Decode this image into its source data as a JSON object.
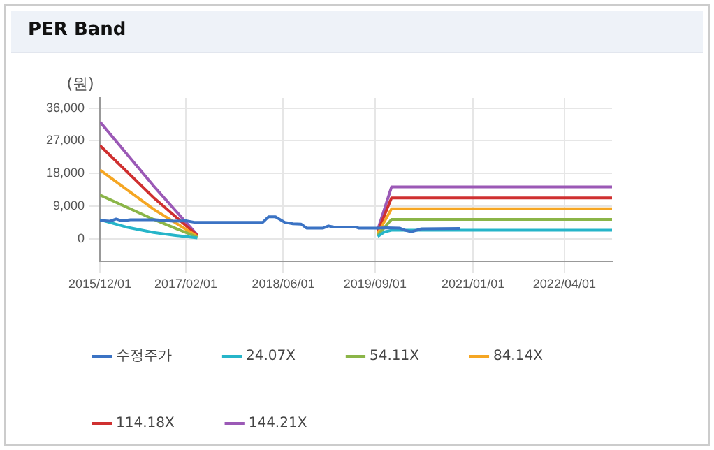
{
  "chart_data": {
    "type": "line",
    "title": "PER Band",
    "ylabel": "(원)",
    "xlim": [
      "2015-12-01",
      "2022-11-24"
    ],
    "xticks": [
      {
        "value": "2015-12-01",
        "label": "2015/12/01"
      },
      {
        "value": "2017-02-01",
        "label": "2017/02/01"
      },
      {
        "value": "2018-06-01",
        "label": "2018/06/01"
      },
      {
        "value": "2019-09-01",
        "label": "2019/09/01"
      },
      {
        "value": "2021-01-01",
        "label": "2021/01/01"
      },
      {
        "value": "2022-04-01",
        "label": "2022/04/01"
      }
    ],
    "ylim": [
      -6200,
      38800
    ],
    "yticks": [
      0,
      {
        "value": 9000,
        "label": "9,000"
      },
      {
        "value": 18000,
        "label": "18,000"
      },
      {
        "value": 27000,
        "label": "27,000"
      },
      {
        "value": 36000,
        "label": "36,000"
      }
    ],
    "grid": true,
    "legend": "bottom",
    "marker": "none",
    "line_style": "solid",
    "series": [
      {
        "name": "수정주가",
        "color": "#3b73c4",
        "x": [
          "2015-12-01",
          "2016-01-19",
          "2016-02-20",
          "2016-03-20",
          "2016-05-01",
          "2016-09-01",
          "2016-12-01",
          "2017-02-01",
          "2017-03-15",
          "2017-11-01",
          "2018-02-19",
          "2018-03-19",
          "2018-04-23",
          "2018-06-08",
          "2018-07-19",
          "2018-08-29",
          "2018-09-25",
          "2018-12-16",
          "2019-01-12",
          "2019-02-09",
          "2019-05-28",
          "2019-06-11",
          "2019-09-14",
          "2019-10-25",
          "2020-01-01",
          "2020-01-28",
          "2020-03-01",
          "2020-04-19",
          "2020-10-27"
        ],
        "values": [
          5100,
          4900,
          5500,
          5000,
          5300,
          5300,
          4900,
          5000,
          4600,
          4600,
          4600,
          6100,
          6100,
          4600,
          4200,
          4100,
          3000,
          3000,
          3600,
          3300,
          3300,
          3000,
          3000,
          3100,
          3000,
          2400,
          2000,
          2800,
          2900
        ]
      },
      {
        "name": "24.07X",
        "color": "#26b5c9",
        "x": [
          "2015-12-01",
          "2016-04-10",
          "2016-08-24",
          "2016-12-11",
          "2017-03-30",
          "2017-06-01",
          "2019-09-14",
          "2019-10-20",
          "2019-11-22",
          "2022-11-24"
        ],
        "values": [
          5300,
          3300,
          1800,
          1000,
          300,
          null,
          700,
          2000,
          2400,
          2400
        ]
      },
      {
        "name": "54.11X",
        "color": "#8bb548",
        "x": [
          "2015-12-01",
          "2016-08-24",
          "2017-03-30",
          "2017-06-01",
          "2019-09-14",
          "2019-11-22",
          "2022-11-24"
        ],
        "values": [
          12100,
          5400,
          500,
          null,
          1000,
          5400,
          5400
        ]
      },
      {
        "name": "84.14X",
        "color": "#f5a623",
        "x": [
          "2015-12-01",
          "2016-08-24",
          "2017-03-30",
          "2017-06-01",
          "2019-09-14",
          "2019-11-22",
          "2022-11-24"
        ],
        "values": [
          19000,
          8200,
          700,
          null,
          1500,
          8300,
          8300
        ]
      },
      {
        "name": "114.18X",
        "color": "#cf3030",
        "x": [
          "2015-12-01",
          "2016-08-24",
          "2017-03-30",
          "2017-06-01",
          "2019-09-14",
          "2019-11-22",
          "2022-11-24"
        ],
        "values": [
          25700,
          11400,
          1000,
          null,
          2000,
          11300,
          11300
        ]
      },
      {
        "name": "144.21X",
        "color": "#9b59b6",
        "x": [
          "2015-12-01",
          "2016-08-24",
          "2017-03-30",
          "2017-06-01",
          "2019-09-14",
          "2019-11-22",
          "2022-11-24"
        ],
        "values": [
          32200,
          14600,
          1100,
          null,
          2500,
          14300,
          14300
        ]
      }
    ]
  }
}
